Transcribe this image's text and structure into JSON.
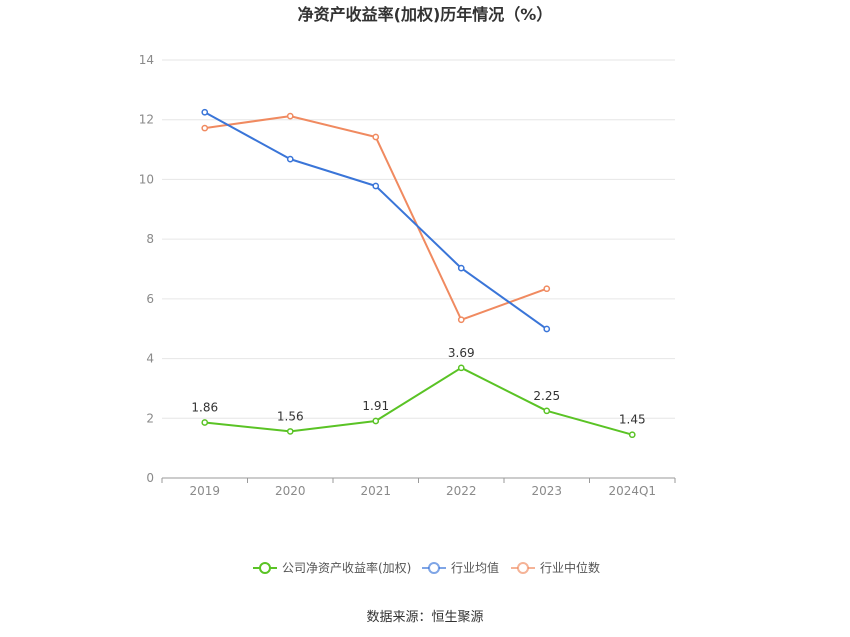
{
  "chart_data": {
    "type": "line",
    "title": "净资产收益率(加权)历年情况（%）",
    "source": "数据来源：恒生聚源",
    "categories": [
      "2019",
      "2020",
      "2021",
      "2022",
      "2023",
      "2024Q1"
    ],
    "ylim": [
      0,
      14
    ],
    "yticks": [
      0,
      2,
      4,
      6,
      8,
      10,
      12,
      14
    ],
    "grid": true,
    "legend_position": "bottom",
    "series": [
      {
        "name": "公司净资产收益率(加权)",
        "color": "#5ac325",
        "values": [
          1.86,
          1.56,
          1.91,
          3.69,
          2.25,
          1.45
        ],
        "labels": [
          "1.86",
          "1.56",
          "1.91",
          "3.69",
          "2.25",
          "1.45"
        ]
      },
      {
        "name": "行业均值",
        "color": "#3a75d8",
        "values": [
          12.25,
          10.68,
          9.78,
          7.03,
          4.99,
          null
        ]
      },
      {
        "name": "行业中位数",
        "color": "#f08a60",
        "values": [
          11.72,
          12.12,
          11.42,
          5.3,
          6.34,
          null
        ]
      }
    ]
  }
}
